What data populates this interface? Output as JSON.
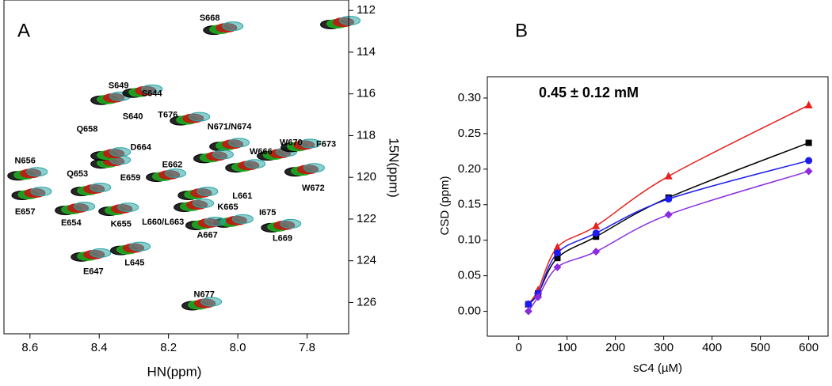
{
  "chart_data": [
    {
      "type": "nmr",
      "panel": "A",
      "xlabel": "HN(ppm)",
      "ylabel": "15N(ppm)",
      "xlim": [
        8.675,
        7.68
      ],
      "ylim": [
        111.5,
        127.5
      ],
      "xticks": [
        8.6,
        8.4,
        8.2,
        {
          "value": 8.0,
          "label": "8.0"
        },
        7.8
      ],
      "yticks": [
        112,
        114,
        116,
        118,
        120,
        122,
        124,
        126
      ],
      "colors": [
        "#000000",
        "#1fb01f",
        "#cc1111",
        "#2aa5a5"
      ],
      "peaks": {
        "x": [
          8.042,
          7.704,
          8.367,
          8.275,
          8.138,
          8.024,
          8.07,
          7.887,
          7.818,
          7.807,
          8.367,
          8.367,
          8.607,
          8.595,
          8.47,
          8.424,
          8.344,
          8.207,
          8.115,
          7.978,
          8.127,
          8.013,
          8.093,
          7.875,
          8.424,
          8.31,
          8.104
        ],
        "y": [
          112.87,
          112.6,
          116.23,
          115.89,
          117.21,
          118.45,
          119.02,
          118.9,
          118.49,
          119.66,
          119.28,
          118.9,
          119.85,
          120.79,
          121.51,
          120.6,
          121.55,
          119.92,
          120.79,
          119.47,
          121.36,
          122.11,
          122.23,
          122.34,
          123.74,
          123.43,
          126.08
        ]
      },
      "labels": [
        {
          "text": "S668",
          "x": 8.081,
          "y": 112.38
        },
        {
          "text": "S649",
          "x": 8.344,
          "y": 115.62
        },
        {
          "text": "S644",
          "x": 8.248,
          "y": 116.0
        },
        {
          "text": "S640",
          "x": 8.303,
          "y": 117.09
        },
        {
          "text": "T676",
          "x": 8.202,
          "y": 117.02
        },
        {
          "text": "N671/N674",
          "x": 8.024,
          "y": 117.58
        },
        {
          "text": "W670",
          "x": 7.846,
          "y": 118.34
        },
        {
          "text": "W666",
          "x": 7.933,
          "y": 118.79
        },
        {
          "text": "F673",
          "x": 7.745,
          "y": 118.42
        },
        {
          "text": "Q658",
          "x": 8.435,
          "y": 117.7
        },
        {
          "text": "D664",
          "x": 8.28,
          "y": 118.57
        },
        {
          "text": "N656",
          "x": 8.614,
          "y": 119.21
        },
        {
          "text": "E662",
          "x": 8.189,
          "y": 119.4
        },
        {
          "text": "Q653",
          "x": 8.463,
          "y": 119.85
        },
        {
          "text": "E659",
          "x": 8.31,
          "y": 120.04
        },
        {
          "text": "L661",
          "x": 7.987,
          "y": 120.91
        },
        {
          "text": "I675",
          "x": 7.914,
          "y": 121.7
        },
        {
          "text": "W672",
          "x": 7.782,
          "y": 120.53
        },
        {
          "text": "K665",
          "x": 8.029,
          "y": 121.43
        },
        {
          "text": "E657",
          "x": 8.614,
          "y": 121.66
        },
        {
          "text": "E654",
          "x": 8.481,
          "y": 122.19
        },
        {
          "text": "K655",
          "x": 8.337,
          "y": 122.26
        },
        {
          "text": "L660/L663",
          "x": 8.216,
          "y": 122.15
        },
        {
          "text": "A667",
          "x": 8.088,
          "y": 122.79
        },
        {
          "text": "L669",
          "x": 7.871,
          "y": 122.94
        },
        {
          "text": "E647",
          "x": 8.417,
          "y": 124.53
        },
        {
          "text": "L645",
          "x": 8.298,
          "y": 124.11
        },
        {
          "text": "N677",
          "x": 8.097,
          "y": 125.62
        }
      ]
    },
    {
      "type": "scatter",
      "panel": "B",
      "annotation": "0.45 ± 0.12 mM",
      "xlabel": "sC4 (µM)",
      "ylabel": "CSD (ppm)",
      "xlim": [
        -65,
        640
      ],
      "ylim": [
        -0.035,
        0.33
      ],
      "xticks": [
        0,
        100,
        200,
        300,
        400,
        500,
        600
      ],
      "yticks": [
        {
          "value": 0,
          "label": "0.00"
        },
        {
          "value": 0.05,
          "label": "0.05"
        },
        {
          "value": 0.1,
          "label": "0.10"
        },
        {
          "value": 0.15,
          "label": "0.15"
        },
        {
          "value": 0.2,
          "label": "0.20"
        },
        {
          "value": 0.25,
          "label": "0.25"
        },
        {
          "value": 0.3,
          "label": "0.30"
        }
      ],
      "x": [
        20,
        40,
        80,
        160,
        310,
        600
      ],
      "series": [
        {
          "marker": "triangle",
          "color": "#e8201c",
          "values": [
            0.01,
            0.03,
            0.09,
            0.12,
            0.19,
            0.29
          ]
        },
        {
          "marker": "square",
          "color": "#000000",
          "values": [
            0.01,
            0.025,
            0.075,
            0.105,
            0.16,
            0.237
          ]
        },
        {
          "marker": "circle",
          "color": "#1c1cf0",
          "values": [
            0.01,
            0.025,
            0.082,
            0.11,
            0.158,
            0.212
          ]
        },
        {
          "marker": "diamond",
          "color": "#8a2be2",
          "values": [
            0.0,
            0.02,
            0.062,
            0.084,
            0.136,
            0.197
          ]
        }
      ]
    }
  ]
}
